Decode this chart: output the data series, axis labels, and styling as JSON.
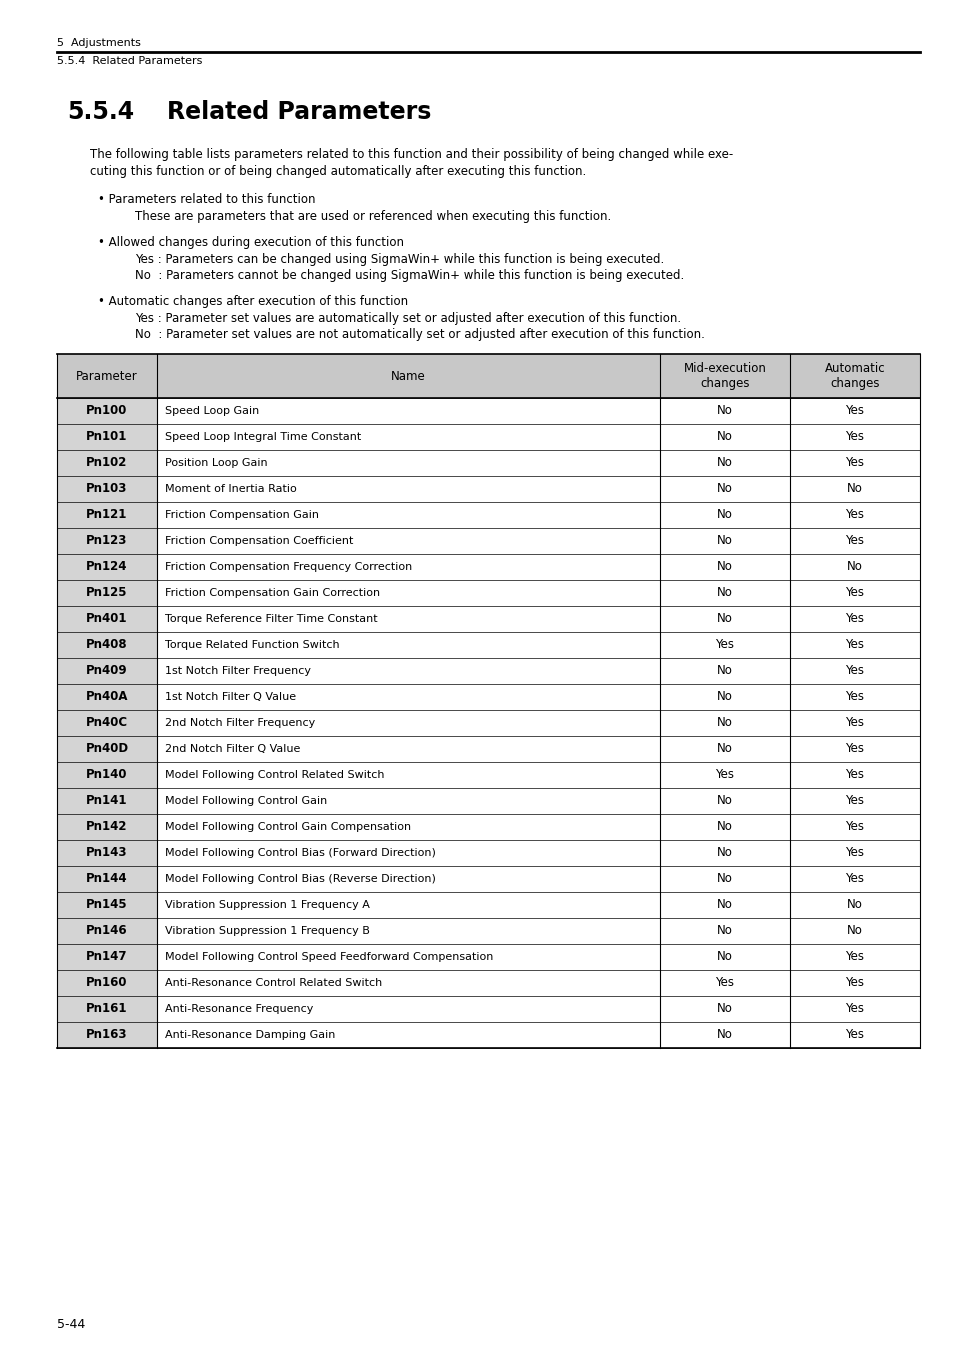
{
  "header_top": "5  Adjustments",
  "header_sub": "5.5.4  Related Parameters",
  "section_number": "5.5.4",
  "section_title": "Related Parameters",
  "intro_line1": "The following table lists parameters related to this function and their possibility of being changed while exe-",
  "intro_line2": "cuting this function or of being changed automatically after executing this function.",
  "bullet1_title": "• Parameters related to this function",
  "bullet1_body": "These are parameters that are used or referenced when executing this function.",
  "bullet2_title": "• Allowed changes during execution of this function",
  "bullet2_yes": "Yes : Parameters can be changed using SigmaWin+ while this function is being executed.",
  "bullet2_no": "No  : Parameters cannot be changed using SigmaWin+ while this function is being executed.",
  "bullet3_title": "• Automatic changes after execution of this function",
  "bullet3_yes": "Yes : Parameter set values are automatically set or adjusted after execution of this function.",
  "bullet3_no": "No  : Parameter set values are not automatically set or adjusted after execution of this function.",
  "table_headers": [
    "Parameter",
    "Name",
    "Mid-execution\nchanges",
    "Automatic\nchanges"
  ],
  "table_rows": [
    [
      "Pn100",
      "Speed Loop Gain",
      "No",
      "Yes"
    ],
    [
      "Pn101",
      "Speed Loop Integral Time Constant",
      "No",
      "Yes"
    ],
    [
      "Pn102",
      "Position Loop Gain",
      "No",
      "Yes"
    ],
    [
      "Pn103",
      "Moment of Inertia Ratio",
      "No",
      "No"
    ],
    [
      "Pn121",
      "Friction Compensation Gain",
      "No",
      "Yes"
    ],
    [
      "Pn123",
      "Friction Compensation Coefficient",
      "No",
      "Yes"
    ],
    [
      "Pn124",
      "Friction Compensation Frequency Correction",
      "No",
      "No"
    ],
    [
      "Pn125",
      "Friction Compensation Gain Correction",
      "No",
      "Yes"
    ],
    [
      "Pn401",
      "Torque Reference Filter Time Constant",
      "No",
      "Yes"
    ],
    [
      "Pn408",
      "Torque Related Function Switch",
      "Yes",
      "Yes"
    ],
    [
      "Pn409",
      "1st Notch Filter Frequency",
      "No",
      "Yes"
    ],
    [
      "Pn40A",
      "1st Notch Filter Q Value",
      "No",
      "Yes"
    ],
    [
      "Pn40C",
      "2nd Notch Filter Frequency",
      "No",
      "Yes"
    ],
    [
      "Pn40D",
      "2nd Notch Filter Q Value",
      "No",
      "Yes"
    ],
    [
      "Pn140",
      "Model Following Control Related Switch",
      "Yes",
      "Yes"
    ],
    [
      "Pn141",
      "Model Following Control Gain",
      "No",
      "Yes"
    ],
    [
      "Pn142",
      "Model Following Control Gain Compensation",
      "No",
      "Yes"
    ],
    [
      "Pn143",
      "Model Following Control Bias (Forward Direction)",
      "No",
      "Yes"
    ],
    [
      "Pn144",
      "Model Following Control Bias (Reverse Direction)",
      "No",
      "Yes"
    ],
    [
      "Pn145",
      "Vibration Suppression 1 Frequency A",
      "No",
      "No"
    ],
    [
      "Pn146",
      "Vibration Suppression 1 Frequency B",
      "No",
      "No"
    ],
    [
      "Pn147",
      "Model Following Control Speed Feedforward Compensation",
      "No",
      "Yes"
    ],
    [
      "Pn160",
      "Anti-Resonance Control Related Switch",
      "Yes",
      "Yes"
    ],
    [
      "Pn161",
      "Anti-Resonance Frequency",
      "No",
      "Yes"
    ],
    [
      "Pn163",
      "Anti-Resonance Damping Gain",
      "No",
      "Yes"
    ]
  ],
  "footer_text": "5-44",
  "header_bg": "#c8c8c8",
  "param_col_bg": "#d4d4d4",
  "border_color": "#000000"
}
